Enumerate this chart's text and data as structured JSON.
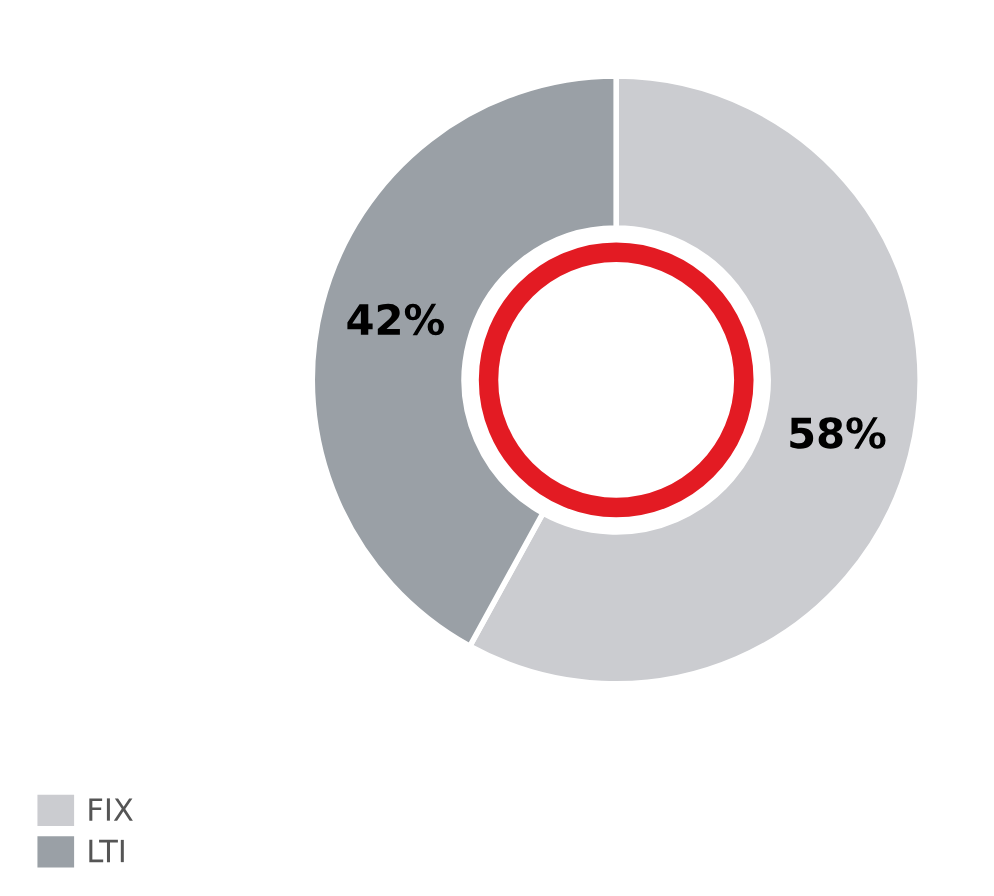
{
  "chart_data": {
    "type": "donut",
    "categories": [
      "FIX",
      "LTI"
    ],
    "values": [
      58,
      42
    ],
    "colors": [
      "#cbccd0",
      "#9aa0a6"
    ],
    "value_labels": [
      "58%",
      "42%"
    ],
    "legend": "bottom left"
  }
}
